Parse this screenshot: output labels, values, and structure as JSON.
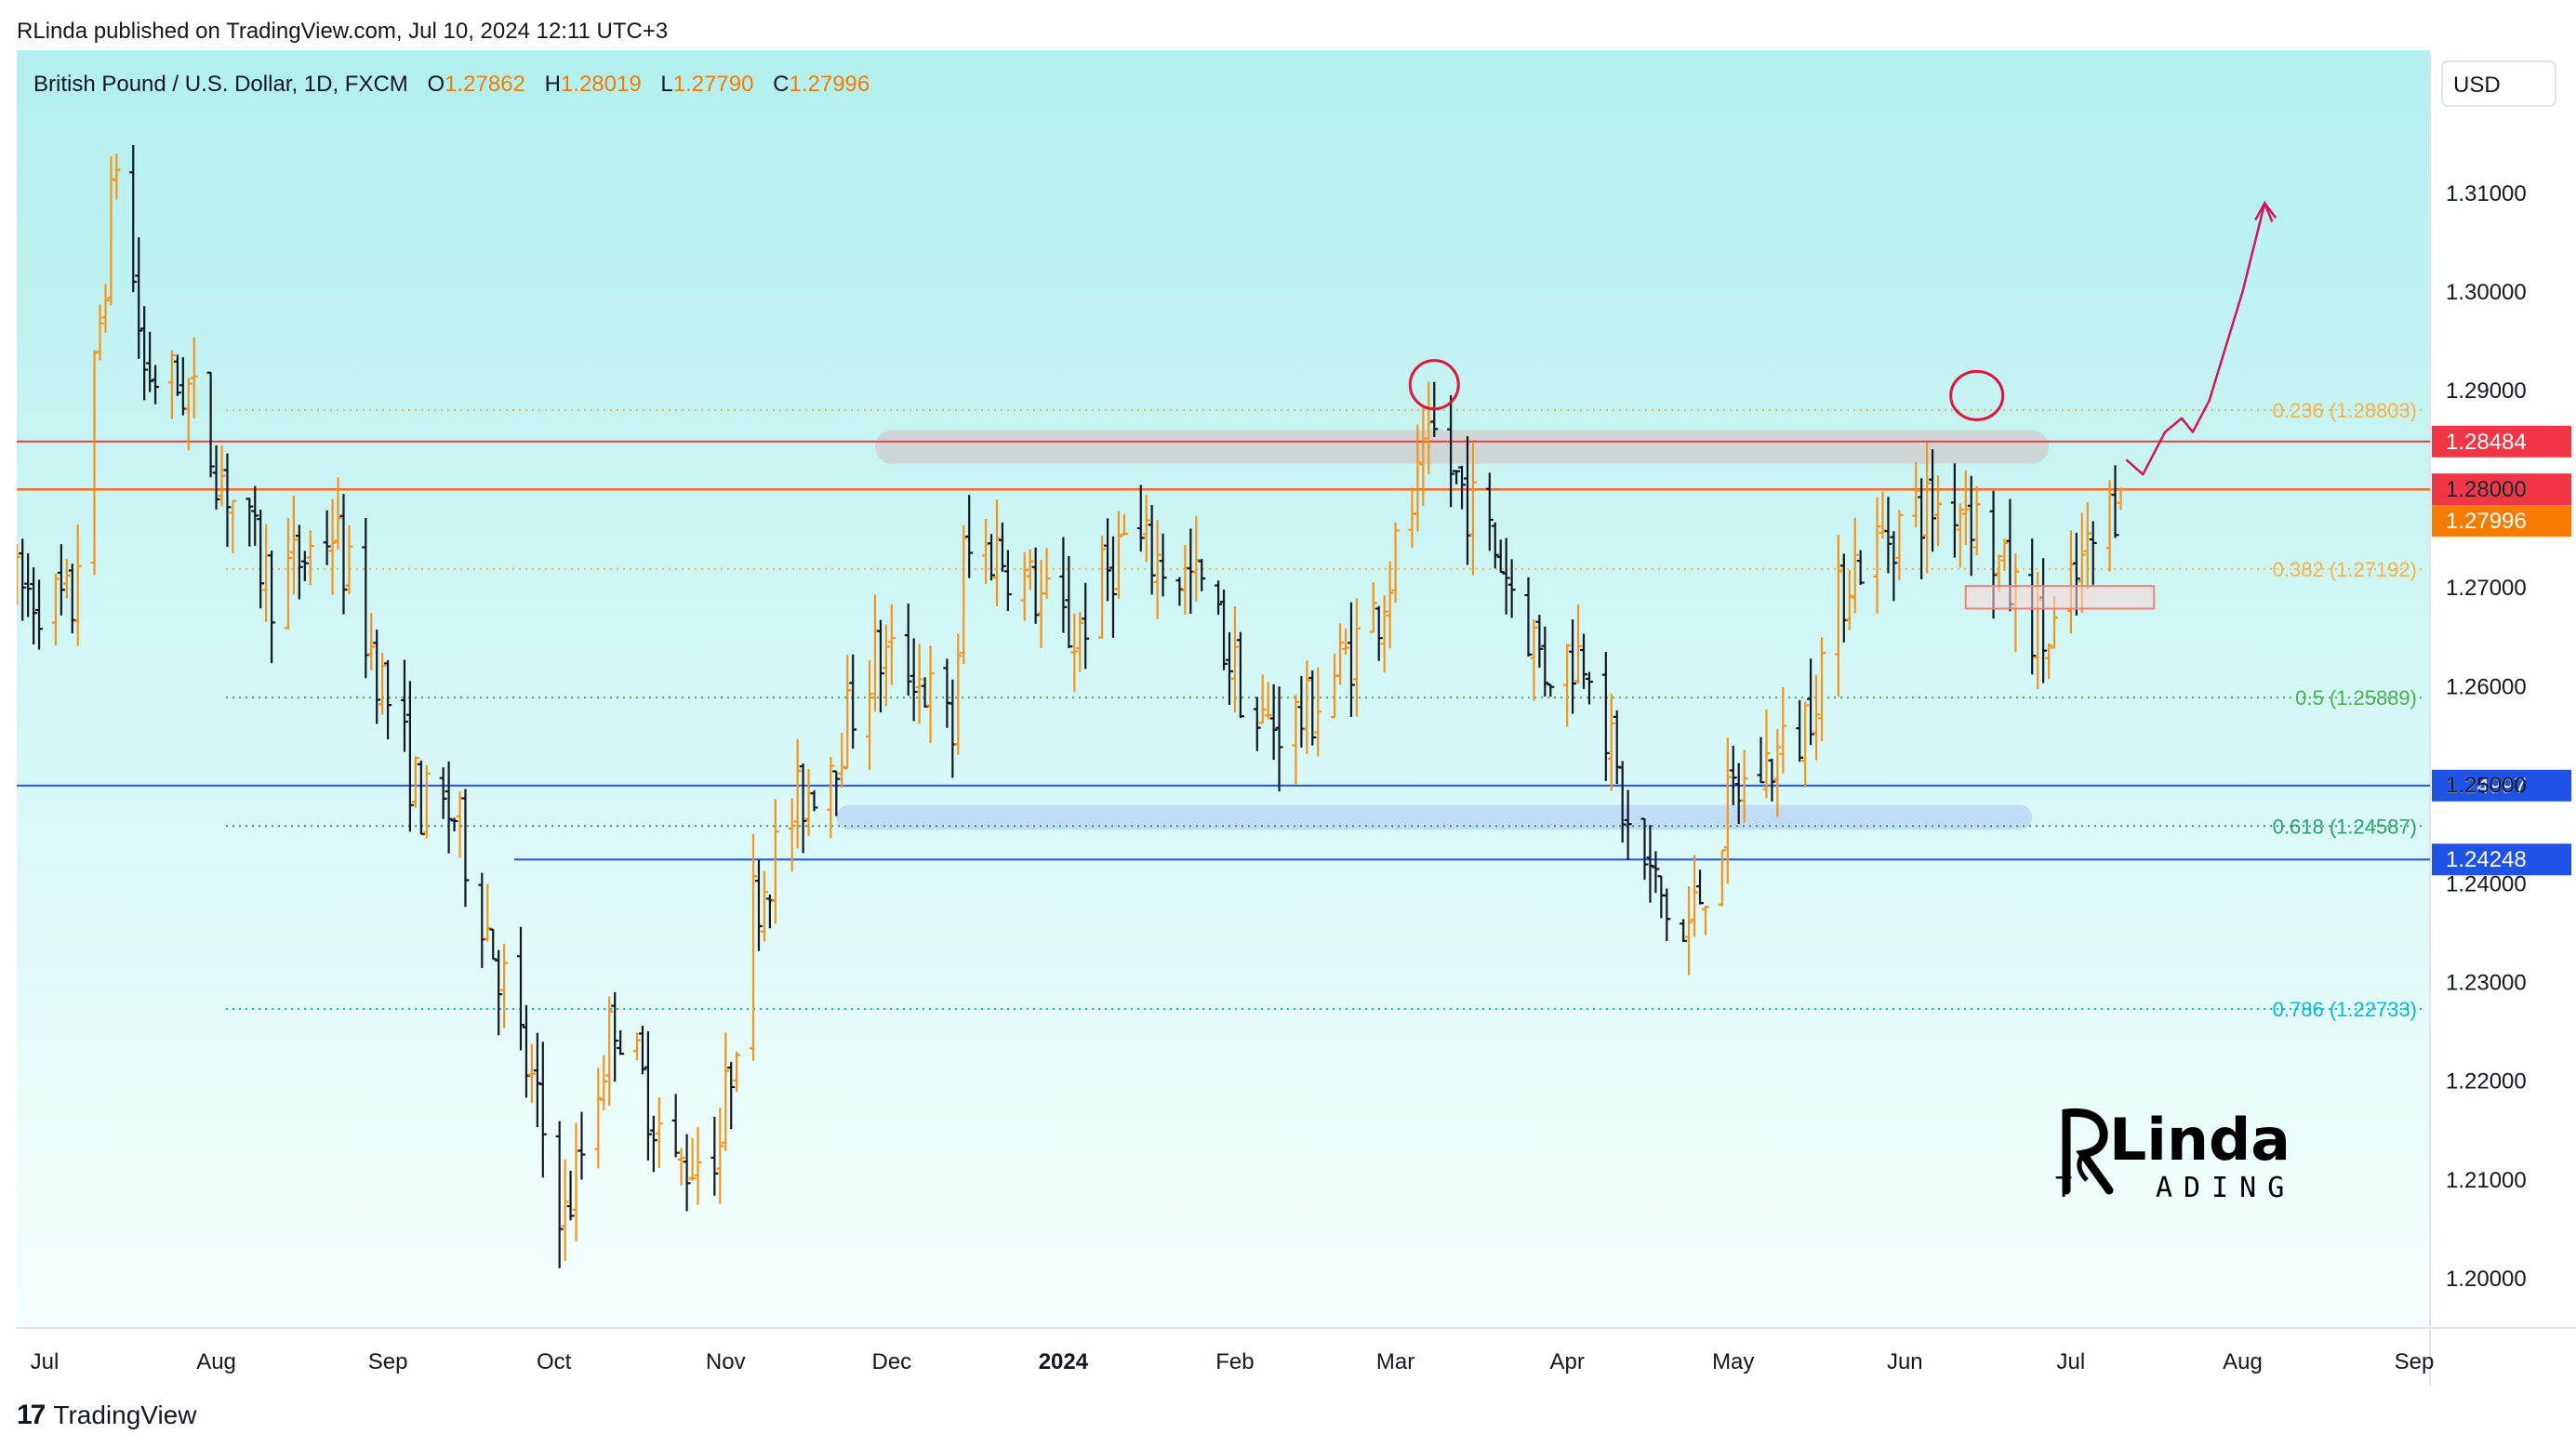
{
  "header": {
    "published_by": "RLinda published on TradingView.com, Jul 10, 2024 12:11 UTC+3"
  },
  "legend": {
    "symbol": "British Pound / U.S. Dollar, 1D, FXCM",
    "o_label": "O",
    "o_value": "1.27862",
    "h_label": "H",
    "h_value": "1.28019",
    "l_label": "L",
    "l_value": "1.27790",
    "c_label": "C",
    "c_value": "1.27996"
  },
  "currency_button": "USD",
  "footer": {
    "brand": "TradingView"
  },
  "watermark": {
    "text": "RLinda TRADING"
  },
  "colors": {
    "background_top": "#b2efee",
    "background_bottom": "#f4fffd",
    "bar_up": "#f7931a",
    "bar_down": "#131722",
    "red_line": "#f23645",
    "orange_line": "#f57c00",
    "blue_line": "#1e53e5",
    "fib_236": "#f7b24a",
    "fib_382": "#f7b24a",
    "fib_5": "#4caf50",
    "fib_618": "#2e9e6b",
    "fib_786": "#00bcd4"
  },
  "chart_data": {
    "type": "ohlc",
    "ylim": [
      1.195,
      1.3245
    ],
    "y_ticks": [
      "1.20000",
      "1.21000",
      "1.22000",
      "1.23000",
      "1.24000",
      "1.25000",
      "1.26000",
      "1.27000",
      "1.28000",
      "1.29000",
      "1.30000",
      "1.31000"
    ],
    "x_ticks": [
      {
        "label": "Jul",
        "date": "2023-07-01"
      },
      {
        "label": "Aug",
        "date": "2023-08-01"
      },
      {
        "label": "Sep",
        "date": "2023-09-01"
      },
      {
        "label": "Oct",
        "date": "2023-10-01"
      },
      {
        "label": "Nov",
        "date": "2023-11-01"
      },
      {
        "label": "Dec",
        "date": "2023-12-01"
      },
      {
        "label": "2024",
        "date": "2024-01-01",
        "bold": true
      },
      {
        "label": "Feb",
        "date": "2024-02-01"
      },
      {
        "label": "Mar",
        "date": "2024-03-01"
      },
      {
        "label": "Apr",
        "date": "2024-04-01"
      },
      {
        "label": "May",
        "date": "2024-05-01"
      },
      {
        "label": "Jun",
        "date": "2024-06-01"
      },
      {
        "label": "Jul",
        "date": "2024-07-01"
      },
      {
        "label": "Aug",
        "date": "2024-08-01"
      },
      {
        "label": "Sep",
        "date": "2024-09-01"
      }
    ],
    "anchors": [
      [
        "2023-06-26",
        1.27
      ],
      [
        "2023-07-06",
        1.268
      ],
      [
        "2023-07-14",
        1.314
      ],
      [
        "2023-07-19",
        1.292
      ],
      [
        "2023-07-27",
        1.29
      ],
      [
        "2023-07-31",
        1.284
      ],
      [
        "2023-08-11",
        1.27
      ],
      [
        "2023-08-22",
        1.276
      ],
      [
        "2023-08-29",
        1.264
      ],
      [
        "2023-09-07",
        1.248
      ],
      [
        "2023-09-13",
        1.247
      ],
      [
        "2023-09-22",
        1.23
      ],
      [
        "2023-10-03",
        1.206
      ],
      [
        "2023-10-12",
        1.227
      ],
      [
        "2023-10-23",
        1.211
      ],
      [
        "2023-10-31",
        1.214
      ],
      [
        "2023-11-06",
        1.238
      ],
      [
        "2023-11-14",
        1.248
      ],
      [
        "2023-11-21",
        1.254
      ],
      [
        "2023-11-28",
        1.263
      ],
      [
        "2023-12-05",
        1.262
      ],
      [
        "2023-12-12",
        1.255
      ],
      [
        "2023-12-14",
        1.273
      ],
      [
        "2023-12-20",
        1.274
      ],
      [
        "2024-01-03",
        1.265
      ],
      [
        "2024-01-12",
        1.275
      ],
      [
        "2024-01-26",
        1.27
      ],
      [
        "2024-02-05",
        1.256
      ],
      [
        "2024-02-14",
        1.257
      ],
      [
        "2024-02-27",
        1.268
      ],
      [
        "2024-03-08",
        1.285
      ],
      [
        "2024-03-20",
        1.273
      ],
      [
        "2024-03-28",
        1.262
      ],
      [
        "2024-04-05",
        1.264
      ],
      [
        "2024-04-12",
        1.245
      ],
      [
        "2024-04-22",
        1.234
      ],
      [
        "2024-05-01",
        1.249
      ],
      [
        "2024-05-13",
        1.255
      ],
      [
        "2024-05-22",
        1.272
      ],
      [
        "2024-06-03",
        1.278
      ],
      [
        "2024-06-12",
        1.279
      ],
      [
        "2024-06-20",
        1.27
      ],
      [
        "2024-06-27",
        1.264
      ],
      [
        "2024-07-03",
        1.272
      ],
      [
        "2024-07-10",
        1.28
      ]
    ],
    "last_bar": {
      "open": 1.27862,
      "high": 1.28019,
      "low": 1.2779,
      "close": 1.27996
    },
    "horizontal_levels": [
      {
        "price": 1.28484,
        "label": "1.28484",
        "color": "red_line"
      },
      {
        "price": 1.28,
        "label": "1.28000",
        "color": "red_line"
      },
      {
        "price": 1.27996,
        "label": "1.27996",
        "color": "orange_line"
      },
      {
        "price": 1.24997,
        "label": "1.24997",
        "color": "blue_line"
      },
      {
        "price": 1.24248,
        "label": "1.24248",
        "color": "blue_line"
      }
    ],
    "fib_levels": [
      {
        "price": 1.28803,
        "label": "0.236 (1.28803)",
        "color": "fib_236"
      },
      {
        "price": 1.27192,
        "label": "0.382 (1.27192)",
        "color": "fib_382"
      },
      {
        "price": 1.25889,
        "label": "0.5 (1.25889)",
        "color": "fib_5"
      },
      {
        "price": 1.24587,
        "label": "0.618 (1.24587)",
        "color": "fib_618"
      },
      {
        "price": 1.22733,
        "label": "0.786 (1.22733)",
        "color": "fib_786"
      }
    ],
    "zones": [
      {
        "name": "resistance-zone",
        "from": "2023-11-28",
        "to": "2024-06-27",
        "y1": 1.2826,
        "y2": 1.286,
        "color": "#d0d0d0"
      },
      {
        "name": "support-zone",
        "from": "2023-11-21",
        "to": "2024-06-24",
        "y1": 1.2455,
        "y2": 1.248,
        "color": "#bcd8f5"
      }
    ],
    "projection": [
      [
        "2024-07-11",
        1.283
      ],
      [
        "2024-07-14",
        1.2815
      ],
      [
        "2024-07-18",
        1.2858
      ],
      [
        "2024-07-21",
        1.2872
      ],
      [
        "2024-07-23",
        1.2858
      ],
      [
        "2024-07-26",
        1.289
      ],
      [
        "2024-08-01",
        1.3
      ],
      [
        "2024-08-05",
        1.309
      ],
      [
        "2024-08-07",
        1.3075
      ]
    ]
  }
}
